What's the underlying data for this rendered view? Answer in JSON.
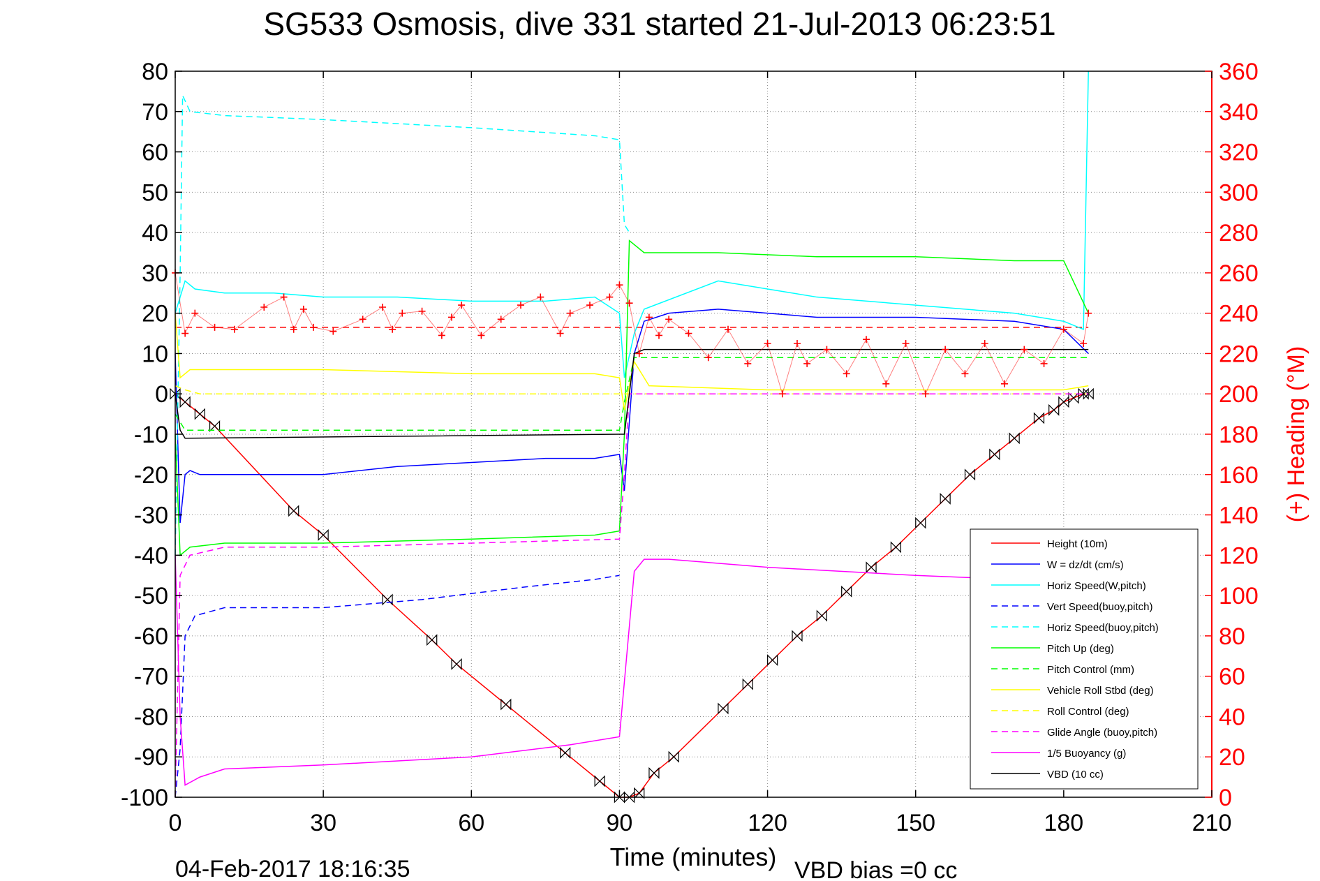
{
  "chart_data": {
    "type": "line",
    "title": "SG533 Osmosis, dive 331 started 21-Jul-2013 06:23:51",
    "xlabel": "Time (minutes)",
    "ylabel": "",
    "y2label": "(+) Heading (°M)",
    "xlim": [
      0,
      210
    ],
    "ylim": [
      -100,
      80
    ],
    "y2lim": [
      0,
      360
    ],
    "xticks": [
      "0",
      "30",
      "60",
      "90",
      "120",
      "150",
      "180",
      "210"
    ],
    "yticks": [
      "80",
      "70",
      "60",
      "50",
      "40",
      "30",
      "20",
      "10",
      "0",
      "-10",
      "-20",
      "-30",
      "-40",
      "-50",
      "-60",
      "-70",
      "-80",
      "-90",
      "-100"
    ],
    "y2ticks": [
      "360",
      "340",
      "320",
      "300",
      "280",
      "260",
      "240",
      "220",
      "200",
      "180",
      "160",
      "140",
      "120",
      "100",
      "80",
      "60",
      "40",
      "20",
      "0"
    ],
    "grid": true,
    "legend_position": "lower-right",
    "footer_date": "04-Feb-2017 18:16:35",
    "footer_vbd": "VBD bias =0 cc",
    "colors": {
      "red": "#ff0000",
      "blue": "#0000ff",
      "cyan": "#00ffff",
      "green": "#00ff00",
      "yellow": "#ffff00",
      "magenta": "#ff00ff",
      "black": "#000000",
      "axis_right": "#ff0000"
    },
    "series": [
      {
        "name": "Height (10m)",
        "color": "#ff0000",
        "style": "solid",
        "markers": "bowtie",
        "x": [
          0,
          2,
          5,
          8,
          24,
          30,
          43,
          52,
          57,
          67,
          79,
          86,
          90,
          92,
          94,
          97,
          101,
          111,
          116,
          121,
          126,
          131,
          136,
          141,
          146,
          151,
          156,
          161,
          166,
          170,
          175,
          178,
          180,
          182,
          184,
          185
        ],
        "y": [
          0,
          -2,
          -5,
          -8,
          -29,
          -35,
          -51,
          -61,
          -67,
          -77,
          -89,
          -96,
          -100,
          -100,
          -99,
          -94,
          -90,
          -78,
          -72,
          -66,
          -60,
          -55,
          -49,
          -43,
          -38,
          -32,
          -26,
          -20,
          -15,
          -11,
          -6,
          -4,
          -2,
          -1,
          0,
          0
        ]
      },
      {
        "name": "W = dz/dt (cm/s)",
        "color": "#0000ff",
        "style": "solid",
        "x": [
          0,
          1,
          2,
          3,
          5,
          10,
          20,
          30,
          45,
          60,
          75,
          85,
          90,
          91,
          93,
          95,
          100,
          110,
          120,
          130,
          150,
          170,
          180,
          185
        ],
        "y": [
          10,
          -32,
          -20,
          -19,
          -20,
          -20,
          -20,
          -20,
          -18,
          -17,
          -16,
          -16,
          -15,
          -24,
          10,
          18,
          20,
          21,
          20,
          19,
          19,
          18,
          16,
          10
        ]
      },
      {
        "name": "Horiz Speed(W,pitch)",
        "color": "#00ffff",
        "style": "solid",
        "x": [
          0,
          2,
          4,
          10,
          20,
          30,
          45,
          60,
          75,
          85,
          90,
          91,
          93,
          95,
          110,
          120,
          130,
          150,
          170,
          180,
          184,
          185
        ],
        "y": [
          20,
          28,
          26,
          25,
          25,
          24,
          24,
          23,
          23,
          24,
          20,
          4,
          15,
          21,
          28,
          26,
          24,
          22,
          20,
          18,
          16,
          80
        ]
      },
      {
        "name": "Vert Speed(buoy,pitch)",
        "color": "#0000ff",
        "style": "dashed",
        "x": [
          0,
          1,
          2,
          4,
          10,
          30,
          50,
          70,
          85,
          90
        ],
        "y": [
          -100,
          -88,
          -60,
          -55,
          -53,
          -53,
          -51,
          -48,
          -46,
          -45
        ]
      },
      {
        "name": "Horiz Speed(buoy,pitch)",
        "color": "#00ffff",
        "style": "dashed",
        "x": [
          0,
          1,
          1.5,
          3,
          10,
          30,
          60,
          85,
          90,
          91,
          92
        ],
        "y": [
          -40,
          30,
          74,
          70,
          69,
          68,
          66,
          64,
          63,
          42,
          40
        ]
      },
      {
        "name": "Pitch Up (deg)",
        "color": "#00ff00",
        "style": "solid",
        "x": [
          0,
          1,
          3,
          10,
          30,
          60,
          85,
          90,
          91,
          92,
          95,
          110,
          130,
          150,
          170,
          180,
          185
        ],
        "y": [
          -10,
          -40,
          -38,
          -37,
          -37,
          -36,
          -35,
          -34,
          -10,
          38,
          35,
          35,
          34,
          34,
          33,
          33,
          20
        ]
      },
      {
        "name": "Pitch Control (mm)",
        "color": "#00ff00",
        "style": "dashed",
        "x": [
          0,
          2,
          90,
          91,
          93,
          185
        ],
        "y": [
          -5,
          -9,
          -9,
          -2,
          9,
          9
        ]
      },
      {
        "name": "Vehicle Roll Stbd (deg)",
        "color": "#ffff00",
        "style": "solid",
        "x": [
          0,
          1,
          3,
          10,
          30,
          60,
          85,
          90,
          91,
          93,
          96,
          120,
          150,
          180,
          185
        ],
        "y": [
          20,
          4,
          6,
          6,
          6,
          5,
          5,
          4,
          -4,
          8,
          2,
          1,
          1,
          1,
          2
        ]
      },
      {
        "name": "Roll Control (deg)",
        "color": "#ffff00",
        "style": "dashed",
        "x": [
          0,
          2,
          5,
          90,
          92,
          185
        ],
        "y": [
          2,
          1,
          0,
          0,
          0,
          0
        ]
      },
      {
        "name": "Glide Angle (buoy,pitch)",
        "color": "#ff00ff",
        "style": "dashed",
        "x": [
          0,
          1,
          3,
          10,
          30,
          60,
          90,
          91,
          92,
          185
        ],
        "y": [
          -100,
          -45,
          -40,
          -38,
          -38,
          -37,
          -36,
          -20,
          0,
          0
        ]
      },
      {
        "name": "1/5 Buoyancy (g)",
        "color": "#ff00ff",
        "style": "solid",
        "x": [
          0,
          1,
          2,
          5,
          10,
          30,
          60,
          80,
          90,
          93,
          95,
          100,
          120,
          150,
          170,
          185
        ],
        "y": [
          -40,
          -80,
          -97,
          -95,
          -93,
          -92,
          -90,
          -87,
          -85,
          -44,
          -41,
          -41,
          -43,
          -45,
          -46,
          -47
        ]
      },
      {
        "name": "VBD (10 cc)",
        "color": "#000000",
        "style": "solid",
        "x": [
          0,
          1,
          2,
          90,
          91,
          93,
          95,
          185
        ],
        "y": [
          0,
          -9,
          -11,
          -10,
          -10,
          10,
          11,
          11
        ]
      },
      {
        "name": "Heading (°M)",
        "color": "#ff0000",
        "style": "plus",
        "axis": "right",
        "x": [
          0,
          2,
          4,
          8,
          12,
          18,
          22,
          24,
          26,
          28,
          32,
          38,
          42,
          44,
          46,
          50,
          54,
          56,
          58,
          62,
          66,
          70,
          74,
          78,
          80,
          84,
          88,
          90,
          92,
          94,
          96,
          98,
          100,
          104,
          108,
          112,
          116,
          120,
          123,
          126,
          128,
          132,
          136,
          140,
          144,
          148,
          152,
          156,
          160,
          164,
          168,
          172,
          176,
          180,
          184,
          185
        ],
        "y": [
          260,
          230,
          240,
          233,
          232,
          243,
          248,
          232,
          242,
          233,
          231,
          237,
          243,
          232,
          240,
          241,
          229,
          238,
          244,
          229,
          237,
          244,
          248,
          230,
          240,
          244,
          248,
          254,
          245,
          220,
          238,
          229,
          237,
          230,
          218,
          232,
          215,
          225,
          200,
          225,
          215,
          222,
          210,
          227,
          205,
          225,
          200,
          222,
          210,
          225,
          205,
          222,
          215,
          232,
          225,
          240
        ]
      }
    ],
    "reference_lines": [
      {
        "name": "mean heading",
        "axis": "right",
        "y": 233,
        "x_range": [
          0,
          185
        ],
        "color": "#ff0000",
        "style": "dashed"
      }
    ]
  }
}
